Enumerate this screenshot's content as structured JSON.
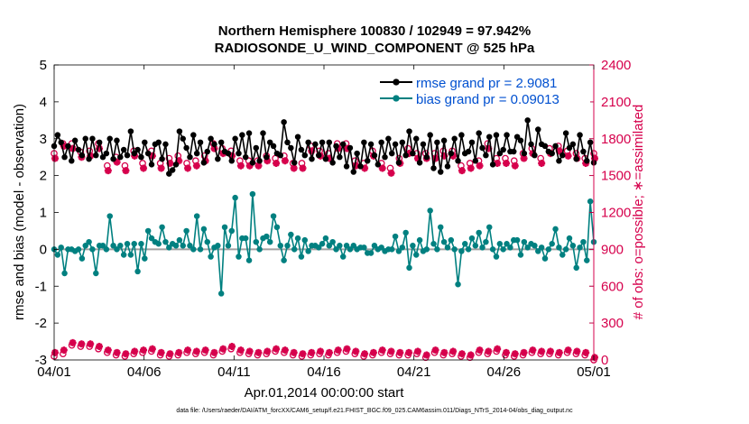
{
  "figure": {
    "title_line1": "Northern Hemisphere 100830 / 102949 = 97.942%",
    "title_line2": "RADIOSONDE_U_WIND_COMPONENT @ 525 hPa",
    "footer": "data file: /Users/raeder/DAI/ATM_forcXX/CAM6_setup/f.e21.FHIST_BGC.f09_025.CAM6assim.011/Diags_NTrS_2014-04/obs_diag_output.nc"
  },
  "chart_data": {
    "type": "line",
    "title": "Northern Hemisphere 100830 / 102949 = 97.942%",
    "subtitle": "RADIOSONDE_U_WIND_COMPONENT @ 525 hPa",
    "xlabel": "Apr.01,2014 00:00:00 start",
    "ylabel": "rmse and bias (model - observation)",
    "ylabel_right": "# of obs: o=possible; ∗=assimilated",
    "x_ticks": [
      "04/01",
      "04/06",
      "04/11",
      "04/16",
      "04/21",
      "04/26",
      "05/01"
    ],
    "xlim": [
      0,
      30
    ],
    "ylim": [
      -3,
      5
    ],
    "y_ticks": [
      -3,
      -2,
      -1,
      0,
      1,
      2,
      3,
      4,
      5
    ],
    "ylim_right": [
      0,
      2400
    ],
    "y_ticks_right": [
      0,
      300,
      600,
      900,
      1200,
      1500,
      1800,
      2100,
      2400
    ],
    "legend_position": "top-right",
    "grid": false,
    "colors": {
      "rmse": "#000000",
      "bias": "#008080",
      "obs": "#d6004c",
      "zero_line": "#a0a0a0"
    },
    "series": [
      {
        "name": "rmse grand pr = 2.9081",
        "axis": "left",
        "marker": "o",
        "values": [
          2.8,
          3.1,
          2.9,
          2.5,
          2.8,
          2.4,
          2.95,
          2.7,
          2.55,
          3.0,
          2.45,
          3.0,
          2.55,
          2.9,
          2.5,
          2.6,
          3.0,
          2.45,
          2.95,
          2.5,
          2.7,
          2.55,
          3.2,
          2.6,
          2.7,
          2.5,
          2.9,
          2.6,
          2.3,
          2.85,
          2.9,
          2.45,
          2.85,
          2.05,
          2.15,
          2.3,
          3.2,
          3.0,
          2.75,
          2.5,
          3.1,
          2.6,
          2.9,
          2.35,
          2.65,
          3.0,
          2.85,
          2.45,
          2.9,
          2.65,
          2.6,
          2.4,
          3.0,
          2.6,
          3.1,
          2.5,
          3.15,
          2.35,
          2.75,
          2.4,
          3.15,
          2.5,
          2.9,
          2.8,
          2.6,
          2.55,
          3.45,
          2.9,
          2.75,
          2.35,
          3.05,
          2.7,
          2.55,
          2.9,
          2.45,
          2.85,
          2.55,
          2.9,
          2.45,
          2.9,
          2.35,
          2.8,
          2.5,
          2.85,
          2.25,
          2.75,
          2.1,
          2.6,
          2.25,
          2.9,
          2.4,
          2.85,
          2.55,
          2.3,
          2.9,
          2.5,
          3.0,
          2.6,
          2.85,
          2.35,
          2.9,
          2.55,
          3.2,
          2.6,
          3.0,
          2.35,
          2.85,
          2.5,
          3.1,
          2.2,
          2.9,
          2.1,
          2.95,
          2.25,
          2.6,
          3.0,
          2.4,
          3.1,
          2.6,
          2.65,
          2.9,
          2.4,
          3.15,
          2.75,
          2.55,
          3.05,
          2.3,
          3.1,
          2.6,
          2.7,
          3.1,
          2.65,
          2.65,
          3.05,
          2.95,
          2.6,
          3.5,
          2.85,
          2.55,
          3.25,
          2.85,
          2.8,
          2.65,
          2.6,
          2.8,
          2.4,
          2.55,
          3.15,
          2.75,
          2.85,
          2.45,
          3.1,
          2.65,
          2.4,
          2.9,
          2.35
        ]
      },
      {
        "name": "bias grand pr = 0.09013",
        "axis": "left",
        "marker": "o",
        "values": [
          0.0,
          -0.15,
          0.05,
          -0.65,
          0.0,
          0.0,
          -0.05,
          0.0,
          -0.25,
          0.1,
          0.2,
          0.0,
          -0.65,
          0.1,
          0.1,
          0.0,
          0.9,
          0.1,
          0.0,
          0.1,
          -0.15,
          0.15,
          -0.15,
          0.15,
          -0.6,
          0.15,
          -0.25,
          0.5,
          0.3,
          0.2,
          0.15,
          0.6,
          0.2,
          0.05,
          0.15,
          0.1,
          0.25,
          0.1,
          0.5,
          0.1,
          0.0,
          0.9,
          0.0,
          0.55,
          0.2,
          -0.2,
          0.05,
          0.1,
          -1.2,
          0.6,
          0.1,
          0.5,
          1.4,
          -0.2,
          0.3,
          0.3,
          -0.3,
          1.5,
          0.2,
          0.0,
          0.3,
          0.35,
          0.2,
          0.9,
          0.6,
          0.1,
          -0.3,
          0.1,
          0.4,
          0.0,
          0.3,
          -0.2,
          0.25,
          -0.05,
          0.1,
          0.1,
          0.05,
          0.15,
          0.3,
          0.1,
          0.2,
          0.0,
          0.1,
          -0.2,
          0.1,
          0.0,
          0.1,
          0.0,
          0.05,
          0.05,
          -0.1,
          -0.1,
          0.1,
          0.0,
          0.05,
          -0.05,
          0.0,
          0.0,
          0.35,
          -0.05,
          0.05,
          0.45,
          -0.5,
          0.1,
          -0.15,
          0.25,
          -0.05,
          0.0,
          1.05,
          0.15,
          0.0,
          0.6,
          0.2,
          0.05,
          0.25,
          0.0,
          -0.95,
          -0.05,
          0.15,
          0.0,
          0.3,
          0.1,
          0.45,
          0.05,
          0.2,
          0.6,
          0.0,
          -0.2,
          0.15,
          0.0,
          0.15,
          0.05,
          0.25,
          0.25,
          -0.15,
          0.2,
          0.05,
          0.15,
          0.1,
          -0.05,
          0.05,
          -0.25,
          0.0,
          0.15,
          0.55,
          0.05,
          -0.15,
          0.0,
          0.3,
          0.1,
          -0.5,
          0.05,
          0.2,
          -0.3,
          1.3,
          0.2
        ]
      },
      {
        "name": "obs possible",
        "axis": "right",
        "marker": "o",
        "values_main": [
          1680,
          1760,
          1760,
          1690,
          1700,
          1760,
          1580,
          1650,
          1580,
          1700,
          1600,
          1700,
          1600,
          1640,
          1660,
          1600,
          1620,
          1660,
          1760,
          1720,
          1700,
          1620,
          1620,
          1620,
          1660,
          1640,
          1660,
          1600,
          1600,
          1740,
          1700,
          1680,
          1760,
          1760,
          1620,
          1600,
          1700,
          1600,
          1560,
          1640,
          1720,
          1680,
          1680,
          1680,
          1700,
          1700,
          1580,
          1600,
          1620,
          1760,
          1640,
          1640,
          1620,
          1680,
          1720,
          1640,
          1720,
          1740,
          1700,
          1680,
          1640,
          1680
        ],
        "values_low": [
          30,
          50,
          120,
          110,
          110,
          90,
          60,
          40,
          30,
          50,
          60,
          70,
          40,
          30,
          40,
          60,
          50,
          60,
          40,
          70,
          90,
          60,
          50,
          40,
          50,
          70,
          60,
          40,
          30,
          40,
          50,
          40,
          60,
          70,
          50,
          30,
          40,
          60,
          50,
          40,
          40,
          50,
          20,
          60,
          40,
          50,
          30,
          20,
          60,
          50,
          70,
          40,
          30,
          40,
          60,
          50,
          50,
          40,
          60,
          50,
          40,
          0
        ]
      },
      {
        "name": "obs assimilated",
        "axis": "right",
        "marker": "*",
        "values_main": [
          1640,
          1740,
          1720,
          1650,
          1660,
          1720,
          1540,
          1610,
          1540,
          1660,
          1560,
          1660,
          1560,
          1600,
          1620,
          1560,
          1580,
          1620,
          1720,
          1680,
          1660,
          1580,
          1580,
          1580,
          1620,
          1600,
          1620,
          1560,
          1560,
          1700,
          1660,
          1640,
          1720,
          1720,
          1580,
          1560,
          1660,
          1560,
          1520,
          1600,
          1680,
          1640,
          1640,
          1640,
          1660,
          1660,
          1540,
          1560,
          1580,
          1720,
          1600,
          1600,
          1580,
          1640,
          1680,
          1600,
          1680,
          1700,
          1660,
          1640,
          1600,
          1640
        ],
        "values_low": [
          60,
          80,
          140,
          130,
          130,
          110,
          80,
          60,
          50,
          70,
          80,
          90,
          60,
          50,
          60,
          80,
          70,
          80,
          60,
          90,
          110,
          80,
          70,
          60,
          70,
          90,
          80,
          60,
          50,
          60,
          70,
          60,
          80,
          90,
          70,
          50,
          60,
          80,
          70,
          60,
          60,
          70,
          40,
          80,
          60,
          70,
          50,
          40,
          80,
          70,
          90,
          60,
          50,
          60,
          80,
          70,
          70,
          60,
          80,
          70,
          60,
          20
        ]
      }
    ]
  }
}
